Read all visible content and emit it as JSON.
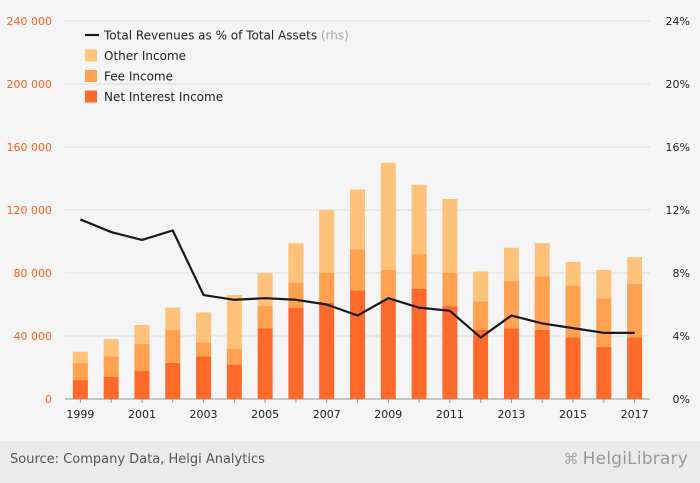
{
  "chart_data": {
    "type": "bar",
    "stacked": true,
    "categories": [
      "1999",
      "2000",
      "2001",
      "2002",
      "2003",
      "2004",
      "2005",
      "2006",
      "2007",
      "2008",
      "2009",
      "2010",
      "2011",
      "2012",
      "2013",
      "2014",
      "2015",
      "2016",
      "2017"
    ],
    "x_tick_labels": [
      "1999",
      "2001",
      "2003",
      "2005",
      "2007",
      "2009",
      "2011",
      "2013",
      "2015",
      "2017"
    ],
    "y_left": {
      "min": 0,
      "max": 240000,
      "ticks": [
        0,
        40000,
        80000,
        120000,
        160000,
        200000,
        240000
      ],
      "tick_labels": [
        "0",
        "40 000",
        "80 000",
        "120 000",
        "160 000",
        "200 000",
        "240 000"
      ]
    },
    "y_right": {
      "min": 0,
      "max": 24,
      "ticks": [
        0,
        4,
        8,
        12,
        16,
        20,
        24
      ],
      "tick_labels": [
        "0%",
        "4%",
        "8%",
        "12%",
        "16%",
        "20%",
        "24%"
      ]
    },
    "grid": true,
    "legend_position": "top-left",
    "series": [
      {
        "name": "Net Interest Income",
        "kind": "bar",
        "color": "#ff6a2a",
        "values": [
          12000,
          14000,
          18000,
          23000,
          27000,
          22000,
          45000,
          58000,
          61000,
          69000,
          63000,
          70000,
          59000,
          44000,
          45000,
          44000,
          39000,
          33000,
          39000
        ]
      },
      {
        "name": "Fee Income",
        "kind": "bar",
        "color": "#ffa14f",
        "values": [
          11000,
          13000,
          17000,
          21000,
          9000,
          10000,
          14000,
          16000,
          19000,
          26000,
          19000,
          22000,
          21000,
          18000,
          30000,
          34000,
          33000,
          31000,
          34000
        ]
      },
      {
        "name": "Other Income",
        "kind": "bar",
        "color": "#ffc27a",
        "values": [
          7000,
          11000,
          12000,
          14000,
          19000,
          34000,
          21000,
          25000,
          40000,
          38000,
          68000,
          44000,
          47000,
          19000,
          21000,
          21000,
          15000,
          18000,
          17000
        ]
      },
      {
        "name": "Total Revenues as % of Total Assets",
        "name_suffix": "(rhs)",
        "kind": "line",
        "axis": "right",
        "color": "#1a1a1a",
        "values": [
          11.4,
          10.6,
          10.1,
          10.7,
          6.6,
          6.3,
          6.4,
          6.3,
          6.0,
          5.3,
          6.4,
          5.8,
          5.6,
          3.9,
          5.3,
          4.8,
          4.5,
          4.2,
          4.2
        ]
      }
    ]
  },
  "footer": {
    "source": "Source: Company Data, Helgi Analytics",
    "logo": "HelgiLibrary"
  }
}
